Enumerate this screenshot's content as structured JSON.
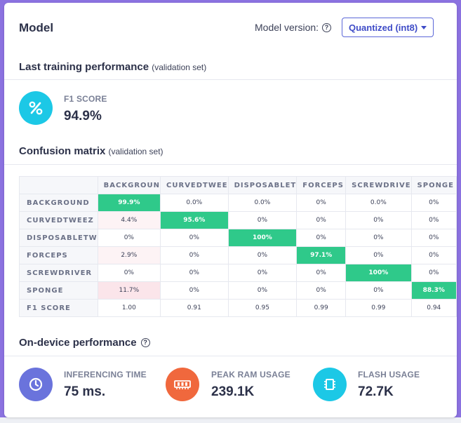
{
  "header": {
    "title": "Model",
    "version_label": "Model version:",
    "version_value": "Quantized (int8)"
  },
  "training": {
    "title": "Last training performance",
    "subtitle": "(validation set)",
    "f1_label": "F1 SCORE",
    "f1_value": "94.9%",
    "icon": "percent-icon",
    "icon_color": "#1cc8e6"
  },
  "confusion": {
    "title": "Confusion matrix",
    "subtitle": "(validation set)",
    "columns": [
      "BACKGROUN",
      "CURVEDTWEE",
      "DISPOSABLET",
      "FORCEPS",
      "SCREWDRIVE",
      "SPONGE"
    ],
    "rows": [
      {
        "label": "BACKGROUND",
        "cells": [
          "99.9%",
          "0.0%",
          "0.0%",
          "0%",
          "0.0%",
          "0%"
        ]
      },
      {
        "label": "CURVEDTWEEZ",
        "cells": [
          "4.4%",
          "95.6%",
          "0%",
          "0%",
          "0%",
          "0%"
        ]
      },
      {
        "label": "DISPOSABLETW",
        "cells": [
          "0%",
          "0%",
          "100%",
          "0%",
          "0%",
          "0%"
        ]
      },
      {
        "label": "FORCEPS",
        "cells": [
          "2.9%",
          "0%",
          "0%",
          "97.1%",
          "0%",
          "0%"
        ]
      },
      {
        "label": "SCREWDRIVER",
        "cells": [
          "0%",
          "0%",
          "0%",
          "0%",
          "100%",
          "0%"
        ]
      },
      {
        "label": "SPONGE",
        "cells": [
          "11.7%",
          "0%",
          "0%",
          "0%",
          "0%",
          "88.3%"
        ]
      }
    ],
    "f1_row": {
      "label": "F1 SCORE",
      "cells": [
        "1.00",
        "0.91",
        "0.95",
        "0.99",
        "0.99",
        "0.94"
      ]
    },
    "highlight_color": "#2fc98a"
  },
  "device": {
    "title": "On-device performance",
    "metrics": [
      {
        "label": "INFERENCING TIME",
        "value": "75 ms.",
        "icon": "clock-icon",
        "color": "#6a73dc"
      },
      {
        "label": "PEAK RAM USAGE",
        "value": "239.1K",
        "icon": "ram-icon",
        "color": "#f0683d"
      },
      {
        "label": "FLASH USAGE",
        "value": "72.7K",
        "icon": "chip-icon",
        "color": "#1cc8e6"
      }
    ]
  }
}
